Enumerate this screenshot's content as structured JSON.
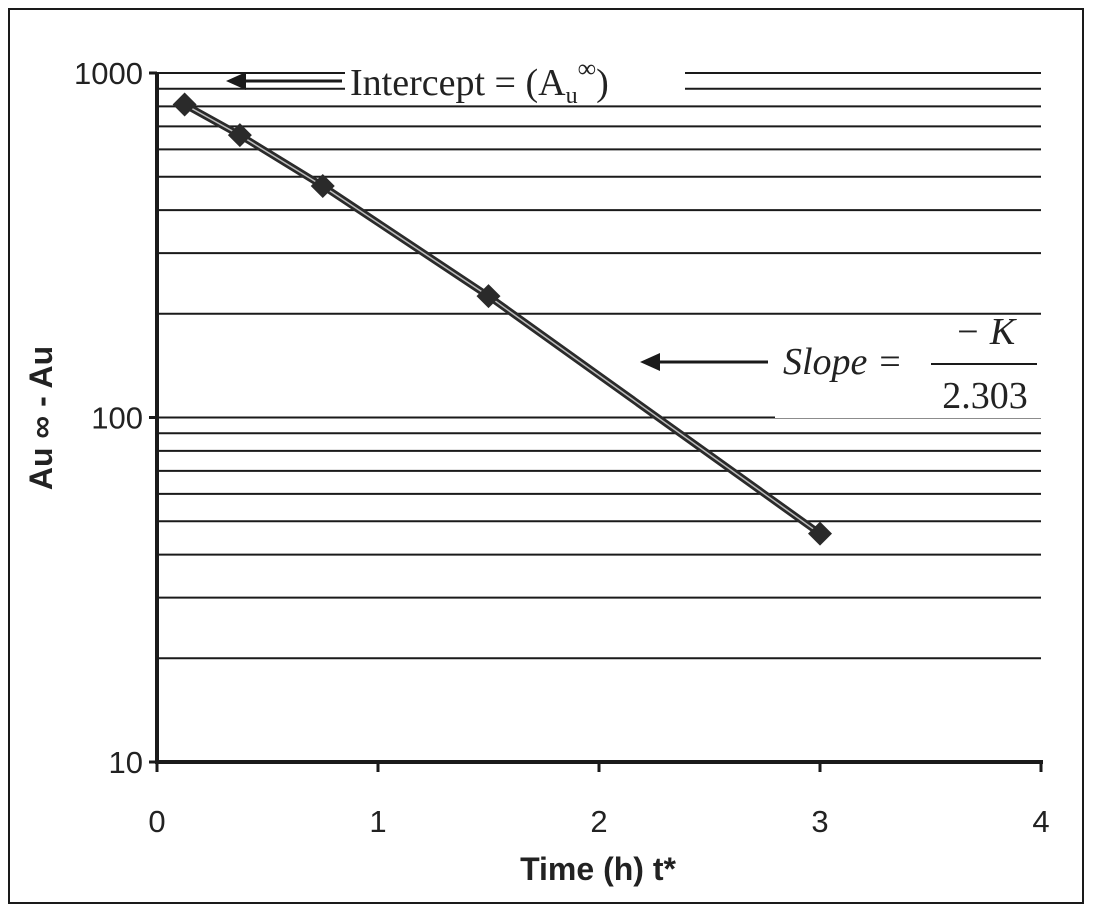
{
  "chart_data": {
    "type": "scatter",
    "xlabel": "Time (h) t*",
    "ylabel": "Au ∞ - Au",
    "xlim": [
      0,
      4
    ],
    "ylim": [
      10,
      1000
    ],
    "yscale": "log",
    "grid": "horizontal",
    "x_ticks": [
      "0",
      "1",
      "2",
      "3",
      "4"
    ],
    "y_ticks": [
      "10",
      "100",
      "1000"
    ],
    "series": [
      {
        "x": [
          0.125,
          0.375,
          0.75,
          1.5,
          3.0
        ],
        "y": [
          810,
          660,
          470,
          225,
          46
        ],
        "marker": "diamond",
        "color": "#2a2a2a"
      }
    ],
    "annotations": {
      "intercept_text": "Intercept = (A",
      "intercept_sub": "u",
      "intercept_sup": "∞",
      "intercept_close": ")",
      "slope_text": "Slope =",
      "slope_numerator": "− K",
      "slope_denominator": "2.303"
    }
  }
}
